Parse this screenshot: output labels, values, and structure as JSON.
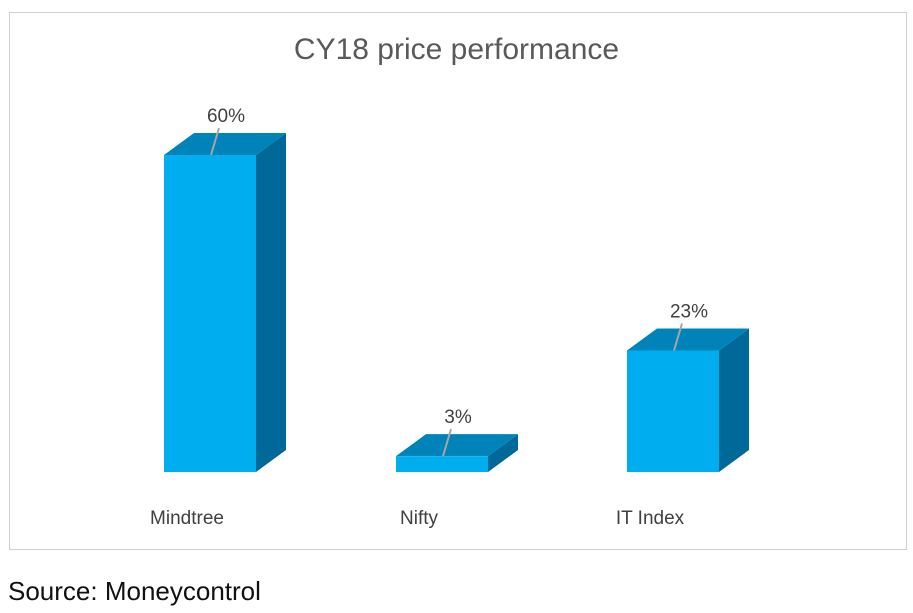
{
  "chart_data": {
    "type": "bar",
    "title": "CY18 price performance",
    "categories": [
      "Mindtree",
      "Nifty",
      "IT Index"
    ],
    "values": [
      60,
      3,
      23
    ],
    "data_labels": [
      "60%",
      "3%",
      "23%"
    ],
    "ylim": [
      0,
      60
    ],
    "grid": false,
    "legend": "none",
    "style": "3d",
    "colors": {
      "front": "#00aeef",
      "top": "#0083b8",
      "side": "#00699a",
      "leader": "#a6a6a6"
    }
  },
  "source": "Source: Moneycontrol"
}
